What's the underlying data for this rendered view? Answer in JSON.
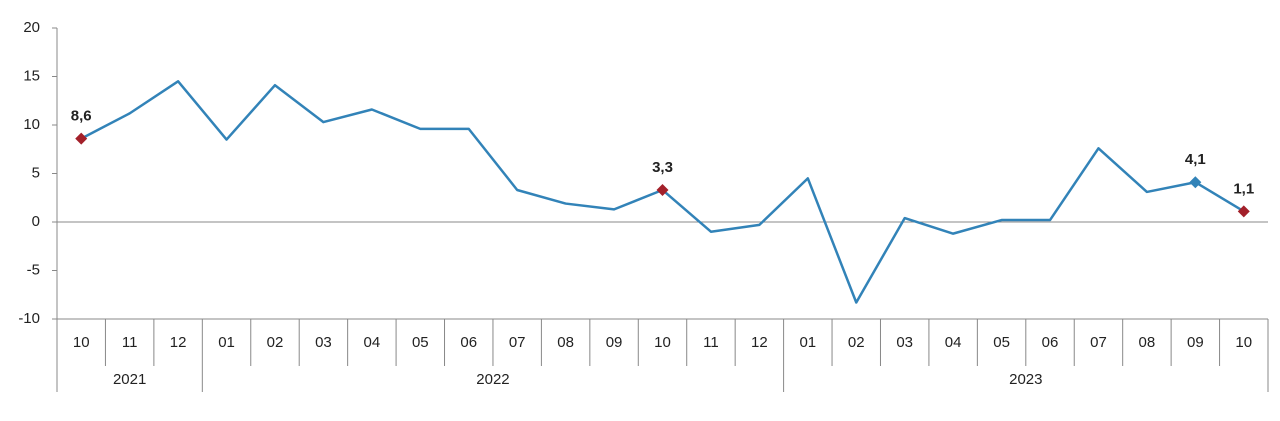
{
  "chart_data": {
    "type": "line",
    "categories": [
      "10",
      "11",
      "12",
      "01",
      "02",
      "03",
      "04",
      "05",
      "06",
      "07",
      "08",
      "09",
      "10",
      "11",
      "12",
      "01",
      "02",
      "03",
      "04",
      "05",
      "06",
      "07",
      "08",
      "09",
      "10"
    ],
    "category_years": [
      "2021",
      null,
      null,
      "2022",
      null,
      null,
      null,
      null,
      null,
      null,
      null,
      null,
      null,
      null,
      null,
      "2023",
      null,
      null,
      null,
      null,
      null,
      null,
      null,
      null,
      null
    ],
    "series": [
      {
        "color": "#3283b8",
        "values": [
          8.6,
          11.2,
          14.5,
          8.5,
          14.1,
          10.3,
          11.6,
          9.6,
          9.6,
          3.3,
          1.9,
          1.3,
          3.3,
          -1.0,
          -0.3,
          4.5,
          -8.3,
          0.4,
          -1.2,
          0.2,
          0.2,
          7.6,
          3.1,
          4.1,
          1.1
        ],
        "value_labels": [
          "8,6",
          null,
          null,
          null,
          null,
          null,
          null,
          null,
          null,
          null,
          null,
          null,
          "3,3",
          null,
          null,
          null,
          null,
          null,
          null,
          null,
          null,
          null,
          null,
          "4,1",
          "1,1"
        ],
        "marker_colors": [
          "#a3202a",
          null,
          null,
          null,
          null,
          null,
          null,
          null,
          null,
          null,
          null,
          null,
          "#a3202a",
          null,
          null,
          null,
          null,
          null,
          null,
          null,
          null,
          null,
          null,
          "#3283b8",
          "#a3202a"
        ]
      }
    ],
    "ylim": [
      -10,
      20
    ],
    "yticks": [
      -10,
      -5,
      0,
      5,
      10,
      15,
      20
    ],
    "grid": false
  }
}
